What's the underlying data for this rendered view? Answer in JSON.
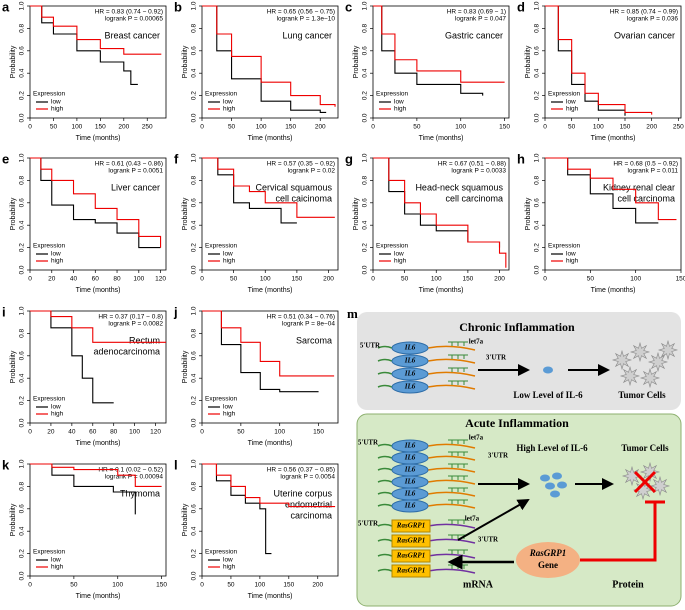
{
  "shared": {
    "x_label": "Time (months)",
    "y_label": "Probability",
    "legend_title": "Expression",
    "legend": [
      {
        "name": "low",
        "color": "#000000"
      },
      {
        "name": "high",
        "color": "#ee0000"
      }
    ],
    "ylim": [
      0,
      1
    ],
    "yticks": [
      {
        "value": 0,
        "label": "0.0"
      },
      0.2,
      0.4,
      0.6,
      0.8,
      {
        "value": 1,
        "label": "1.0"
      }
    ]
  },
  "panels": [
    {
      "letter": "a",
      "title": [
        "Breast cancer"
      ],
      "hr": "HR = 0.83 (0.74 − 0.92)",
      "logrank": "logrank P = 0.00065",
      "xlim": [
        0,
        290
      ],
      "xticks": [
        0,
        50,
        100,
        150,
        200,
        250
      ],
      "series": [
        {
          "x": [
            0,
            25,
            50,
            100,
            150,
            200,
            215,
            230
          ],
          "values": [
            1,
            0.85,
            0.75,
            0.6,
            0.5,
            0.42,
            0.3,
            0.3
          ]
        },
        {
          "x": [
            0,
            25,
            50,
            100,
            150,
            200,
            250,
            280
          ],
          "values": [
            1,
            0.9,
            0.82,
            0.7,
            0.62,
            0.57,
            0.57,
            0.57
          ]
        }
      ]
    },
    {
      "letter": "b",
      "title": [
        "Lung cancer"
      ],
      "hr": "HR = 0.65 (0.56 − 0.75)",
      "logrank": "logrank P = 1.3e−10",
      "xlim": [
        0,
        230
      ],
      "xticks": [
        0,
        50,
        100,
        150,
        200
      ],
      "series": [
        {
          "x": [
            0,
            25,
            50,
            100,
            150,
            200,
            210
          ],
          "values": [
            1,
            0.6,
            0.35,
            0.15,
            0.07,
            0.05,
            0.05
          ]
        },
        {
          "x": [
            0,
            25,
            50,
            100,
            150,
            200,
            225
          ],
          "values": [
            1,
            0.75,
            0.55,
            0.32,
            0.2,
            0.12,
            0.1
          ]
        }
      ]
    },
    {
      "letter": "c",
      "title": [
        "Gastric cancer"
      ],
      "hr": "HR = 0.83 (0.69 − 1)",
      "logrank": "logrank P = 0.047",
      "xlim": [
        0,
        155
      ],
      "xticks": [
        0,
        50,
        100,
        150
      ],
      "series": [
        {
          "x": [
            0,
            10,
            25,
            50,
            100,
            125
          ],
          "values": [
            1,
            0.6,
            0.4,
            0.3,
            0.22,
            0.2
          ]
        },
        {
          "x": [
            0,
            10,
            25,
            50,
            100,
            150
          ],
          "values": [
            1,
            0.75,
            0.52,
            0.42,
            0.32,
            0.32
          ]
        }
      ]
    },
    {
      "letter": "d",
      "title": [
        "Ovarian cancer"
      ],
      "hr": "HR = 0.85 (0.74 − 0.99)",
      "logrank": "logrank P = 0.036",
      "xlim": [
        0,
        255
      ],
      "xticks": [
        0,
        50,
        100,
        150,
        200,
        250
      ],
      "series": [
        {
          "x": [
            0,
            25,
            50,
            75,
            100,
            150
          ],
          "values": [
            1,
            0.6,
            0.3,
            0.15,
            0.07,
            0.02
          ]
        },
        {
          "x": [
            0,
            25,
            50,
            75,
            100,
            150,
            200
          ],
          "values": [
            1,
            0.7,
            0.4,
            0.22,
            0.12,
            0.05,
            0.03
          ]
        }
      ]
    },
    {
      "letter": "e",
      "title": [
        "Liver cancer"
      ],
      "hr": "HR = 0.61 (0.43 − 0.86)",
      "logrank": "logrank P = 0.0051",
      "xlim": [
        0,
        125
      ],
      "xticks": [
        0,
        20,
        40,
        60,
        80,
        100,
        120
      ],
      "series": [
        {
          "x": [
            0,
            10,
            20,
            40,
            60,
            80,
            100,
            120
          ],
          "values": [
            1,
            0.8,
            0.58,
            0.45,
            0.42,
            0.33,
            0.2,
            0.2
          ]
        },
        {
          "x": [
            0,
            10,
            20,
            40,
            60,
            80,
            100,
            120
          ],
          "values": [
            1,
            0.9,
            0.8,
            0.68,
            0.55,
            0.45,
            0.3,
            0.2
          ]
        }
      ]
    },
    {
      "letter": "f",
      "title": [
        "Cervical squamous",
        "cell caicinoma"
      ],
      "hr": "HR = 0.57 (0.35 − 0.92)",
      "logrank": "logrank P = 0.02",
      "xlim": [
        0,
        215
      ],
      "xticks": [
        0,
        50,
        100,
        150,
        200
      ],
      "series": [
        {
          "x": [
            0,
            25,
            50,
            75,
            100,
            125,
            150
          ],
          "values": [
            1,
            0.85,
            0.6,
            0.55,
            0.55,
            0.42,
            0.42
          ]
        },
        {
          "x": [
            0,
            25,
            50,
            75,
            100,
            150,
            210
          ],
          "values": [
            1,
            0.9,
            0.75,
            0.7,
            0.6,
            0.47,
            0.47
          ]
        }
      ]
    },
    {
      "letter": "g",
      "title": [
        "Head-neck squamous",
        "cell carcinoma"
      ],
      "hr": "HR = 0.67 (0.51 − 0.88)",
      "logrank": "logrank P = 0.0033",
      "xlim": [
        0,
        215
      ],
      "xticks": [
        0,
        50,
        100,
        150,
        200
      ],
      "series": [
        {
          "x": [
            0,
            25,
            50,
            75,
            100,
            150,
            200
          ],
          "values": [
            1,
            0.7,
            0.5,
            0.4,
            0.35,
            0.25,
            0.2
          ]
        },
        {
          "x": [
            0,
            25,
            50,
            75,
            100,
            150,
            200,
            210
          ],
          "values": [
            1,
            0.8,
            0.6,
            0.5,
            0.4,
            0.25,
            0.15,
            0.02
          ]
        }
      ]
    },
    {
      "letter": "h",
      "title": [
        "Kidney renal clear",
        "cell carcinoma"
      ],
      "hr": "HR = 0.68 (0.5 − 0.92)",
      "logrank": "logrank P = 0.011",
      "xlim": [
        0,
        150
      ],
      "xticks": [
        0,
        50,
        100,
        150
      ],
      "series": [
        {
          "x": [
            0,
            25,
            50,
            75,
            100,
            125
          ],
          "values": [
            1,
            0.85,
            0.68,
            0.55,
            0.42,
            0.42
          ]
        },
        {
          "x": [
            0,
            25,
            50,
            75,
            100,
            125,
            145
          ],
          "values": [
            1,
            0.9,
            0.82,
            0.72,
            0.6,
            0.45,
            0.45
          ]
        }
      ]
    },
    {
      "letter": "i",
      "title": [
        "Rectum",
        "adenocarcinoma"
      ],
      "hr": "HR = 0.37 (0.17 − 0.8)",
      "logrank": "logrank P = 0.0082",
      "xlim": [
        0,
        130
      ],
      "xticks": [
        0,
        20,
        40,
        60,
        80,
        100,
        120
      ],
      "series": [
        {
          "x": [
            0,
            20,
            40,
            50,
            60,
            80
          ],
          "values": [
            1,
            0.85,
            0.6,
            0.4,
            0.18,
            0.18
          ]
        },
        {
          "x": [
            0,
            20,
            40,
            60,
            80,
            100,
            130
          ],
          "values": [
            1,
            0.95,
            0.85,
            0.72,
            0.72,
            0.72,
            0.72
          ]
        }
      ]
    },
    {
      "letter": "j",
      "title": [
        "Sarcoma"
      ],
      "hr": "HR = 0.51 (0.34 − 0.76)",
      "logrank": "logrank P = 8e−04",
      "xlim": [
        0,
        175
      ],
      "xticks": [
        0,
        50,
        100,
        150
      ],
      "series": [
        {
          "x": [
            0,
            25,
            50,
            75,
            100,
            150
          ],
          "values": [
            1,
            0.7,
            0.45,
            0.3,
            0.28,
            0.28
          ]
        },
        {
          "x": [
            0,
            25,
            50,
            75,
            100,
            150,
            170
          ],
          "values": [
            1,
            0.85,
            0.72,
            0.55,
            0.42,
            0.42,
            0.42
          ]
        }
      ]
    },
    {
      "letter": "k",
      "title": [
        "Thymoma"
      ],
      "hr": "HR = 0.1 (0.02 − 0.52)",
      "logrank": "logrank P = 0.00094",
      "xlim": [
        0,
        155
      ],
      "xticks": [
        0,
        50,
        100,
        150
      ],
      "series": [
        {
          "x": [
            0,
            25,
            50,
            95,
            120
          ],
          "values": [
            1,
            0.9,
            0.8,
            0.75,
            0.55
          ]
        },
        {
          "x": [
            0,
            25,
            50,
            100,
            120,
            150
          ],
          "values": [
            1,
            0.97,
            0.95,
            0.9,
            0.8,
            0.8
          ]
        }
      ]
    },
    {
      "letter": "l",
      "title": [
        "Uterine corpus",
        "endometrial",
        "carcinoma"
      ],
      "hr": "HR = 0.56 (0.37 − 0.85)",
      "logrank": "logrank P = 0.0054",
      "xlim": [
        0,
        235
      ],
      "xticks": [
        0,
        50,
        100,
        150,
        200
      ],
      "series": [
        {
          "x": [
            0,
            25,
            50,
            75,
            100,
            110,
            120
          ],
          "values": [
            1,
            0.85,
            0.72,
            0.65,
            0.6,
            0.2,
            0.2
          ]
        },
        {
          "x": [
            0,
            25,
            50,
            75,
            100,
            150,
            200,
            230
          ],
          "values": [
            1,
            0.9,
            0.8,
            0.7,
            0.65,
            0.62,
            0.62,
            0.62
          ]
        }
      ]
    }
  ],
  "diagram": {
    "letter": "m",
    "chronic_title": "Chronic Inflammation",
    "acute_title": "Acute Inflammation",
    "utr5": "5'UTR",
    "utr3": "3'UTR",
    "mirna": "let7a",
    "il6": "IL6",
    "low_level": "Low Level of IL-6",
    "high_level": "High Level of IL-6",
    "tumor": "Tumor Cells",
    "rasgrp1": "RasGRP1",
    "gene": "Gene",
    "mrna": "mRNA",
    "protein": "Protein"
  }
}
